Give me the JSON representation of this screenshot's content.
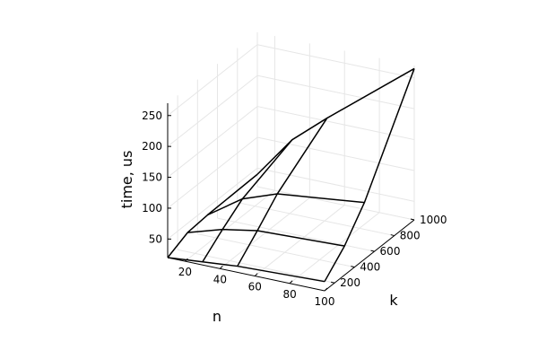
{
  "chart_data": {
    "type": "wireframe",
    "title": "",
    "xlabel": "n",
    "ylabel": "k",
    "zlabel": "time, us",
    "x_ticks": [
      20,
      40,
      60,
      80,
      100
    ],
    "y_ticks": [
      200,
      400,
      600,
      800,
      1000
    ],
    "z_ticks": [
      50,
      100,
      150,
      200,
      250
    ],
    "xlim": [
      10,
      100
    ],
    "ylim": [
      100,
      1000
    ],
    "zlim": [
      20,
      270
    ],
    "grid": true,
    "n_values": [
      10,
      30,
      50,
      100
    ],
    "k_values": [
      100,
      300,
      500,
      1000
    ],
    "time_us": [
      [
        20,
        35,
        38,
        40
      ],
      [
        25,
        52,
        76,
        108
      ],
      [
        30,
        62,
        96,
        155
      ],
      [
        35,
        67,
        112,
        265
      ]
    ],
    "colors": {
      "line": "#000000",
      "grid": "#e6e6e6",
      "background": "#ffffff"
    }
  }
}
